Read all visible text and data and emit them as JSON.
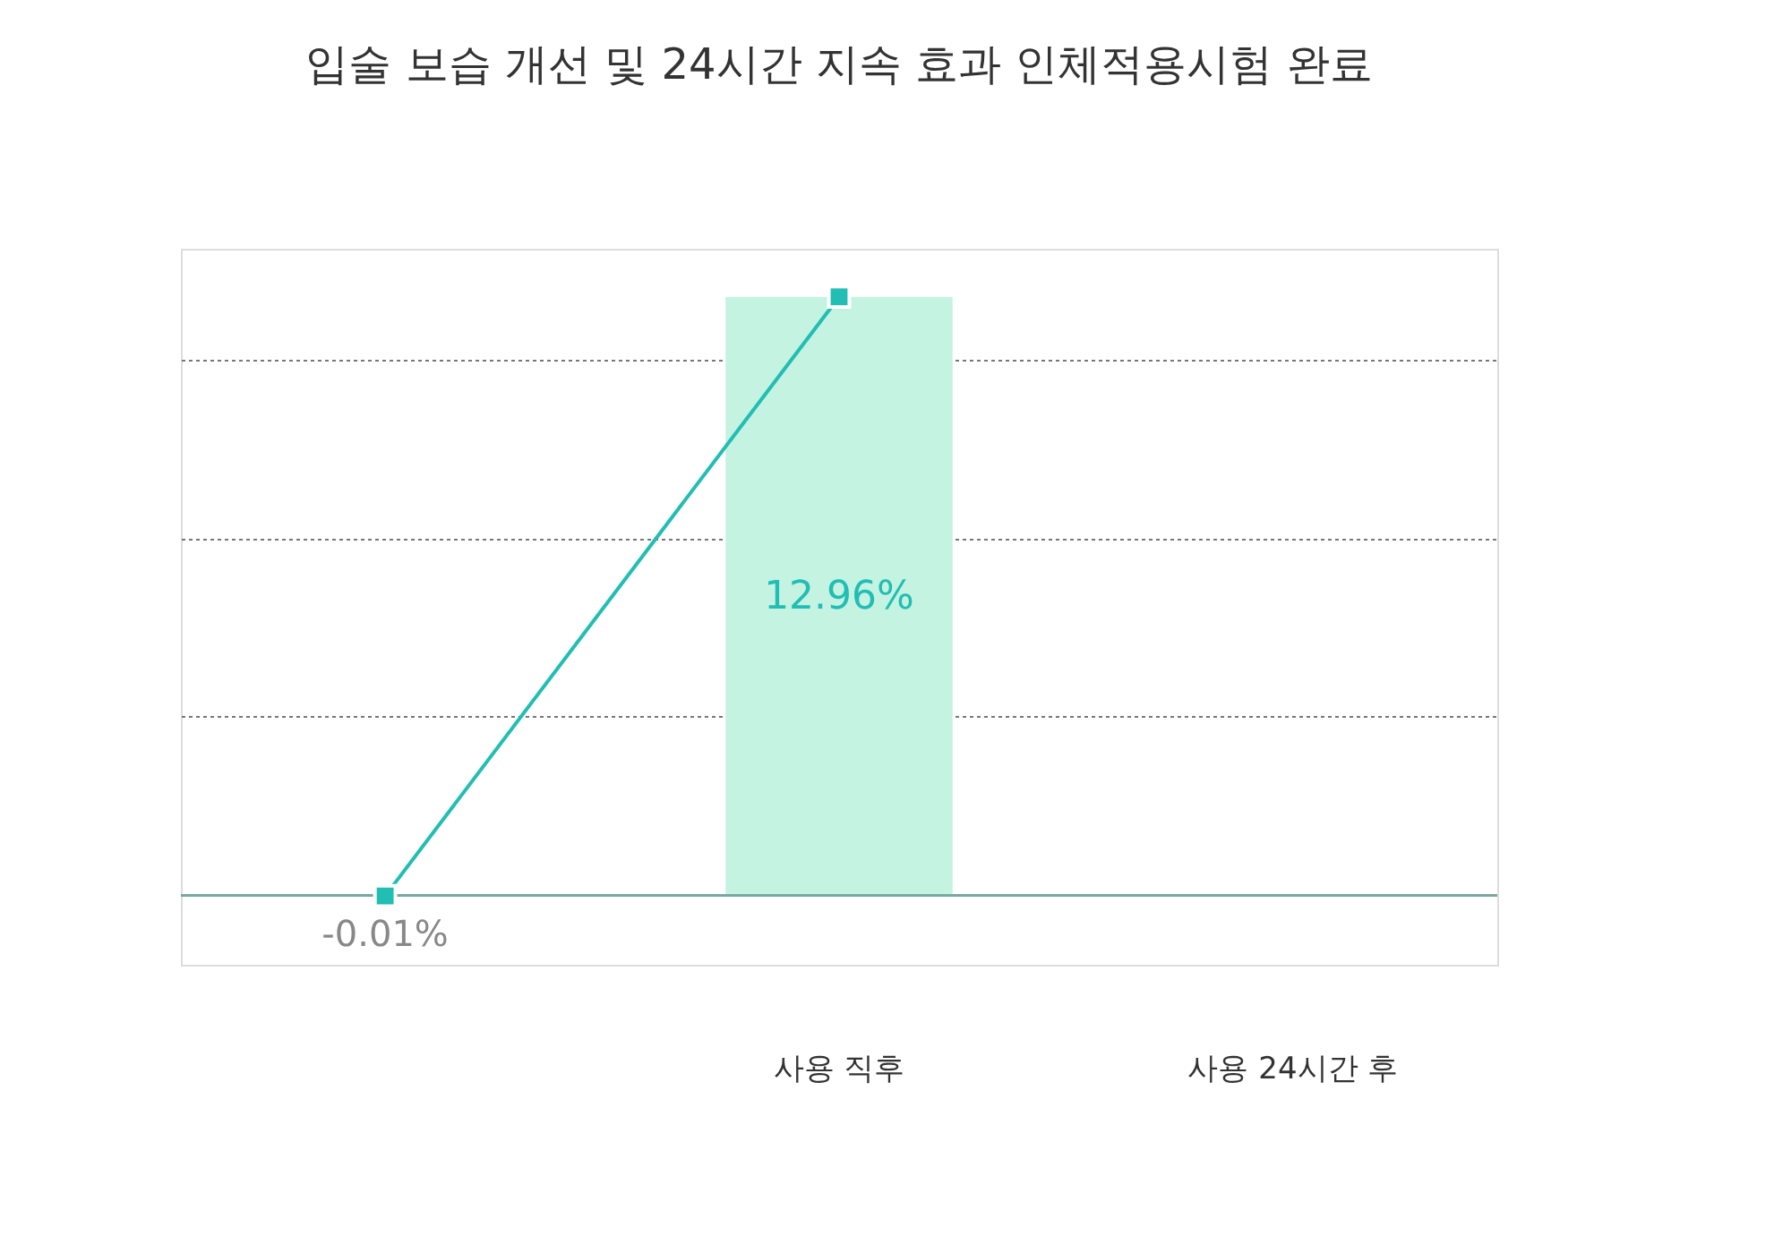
{
  "chart_data": {
    "type": "bar",
    "title": "입술 보습 개선 및 24시간 지속 효과 인체적용시험 완료",
    "categories": [
      null,
      "사용 직후",
      "사용 24시간 후"
    ],
    "series": [
      {
        "values": [
          -0.01,
          12.96,
          null
        ],
        "colors": [
          "#bbbbbb",
          "#c4f3e2",
          "#c4f3e2"
        ],
        "value_labels": [
          "-0.01%",
          "12.96%",
          null
        ]
      },
      {
        "type": "line",
        "color": "#22bdb3",
        "values": [
          -0.01,
          12.96,
          null
        ],
        "marker": "square"
      }
    ],
    "ylim": [
      -1.5,
      14
    ],
    "yticks": [
      {
        "value": 3.87,
        "label": null
      },
      {
        "value": 7.74,
        "label": null
      },
      {
        "value": 11.61,
        "label": null
      }
    ],
    "grid": "y",
    "tick_labels": "x",
    "ref_lines": [
      {
        "axis": "y",
        "value": 0,
        "label": null,
        "color": "#7aa8a0"
      }
    ]
  }
}
